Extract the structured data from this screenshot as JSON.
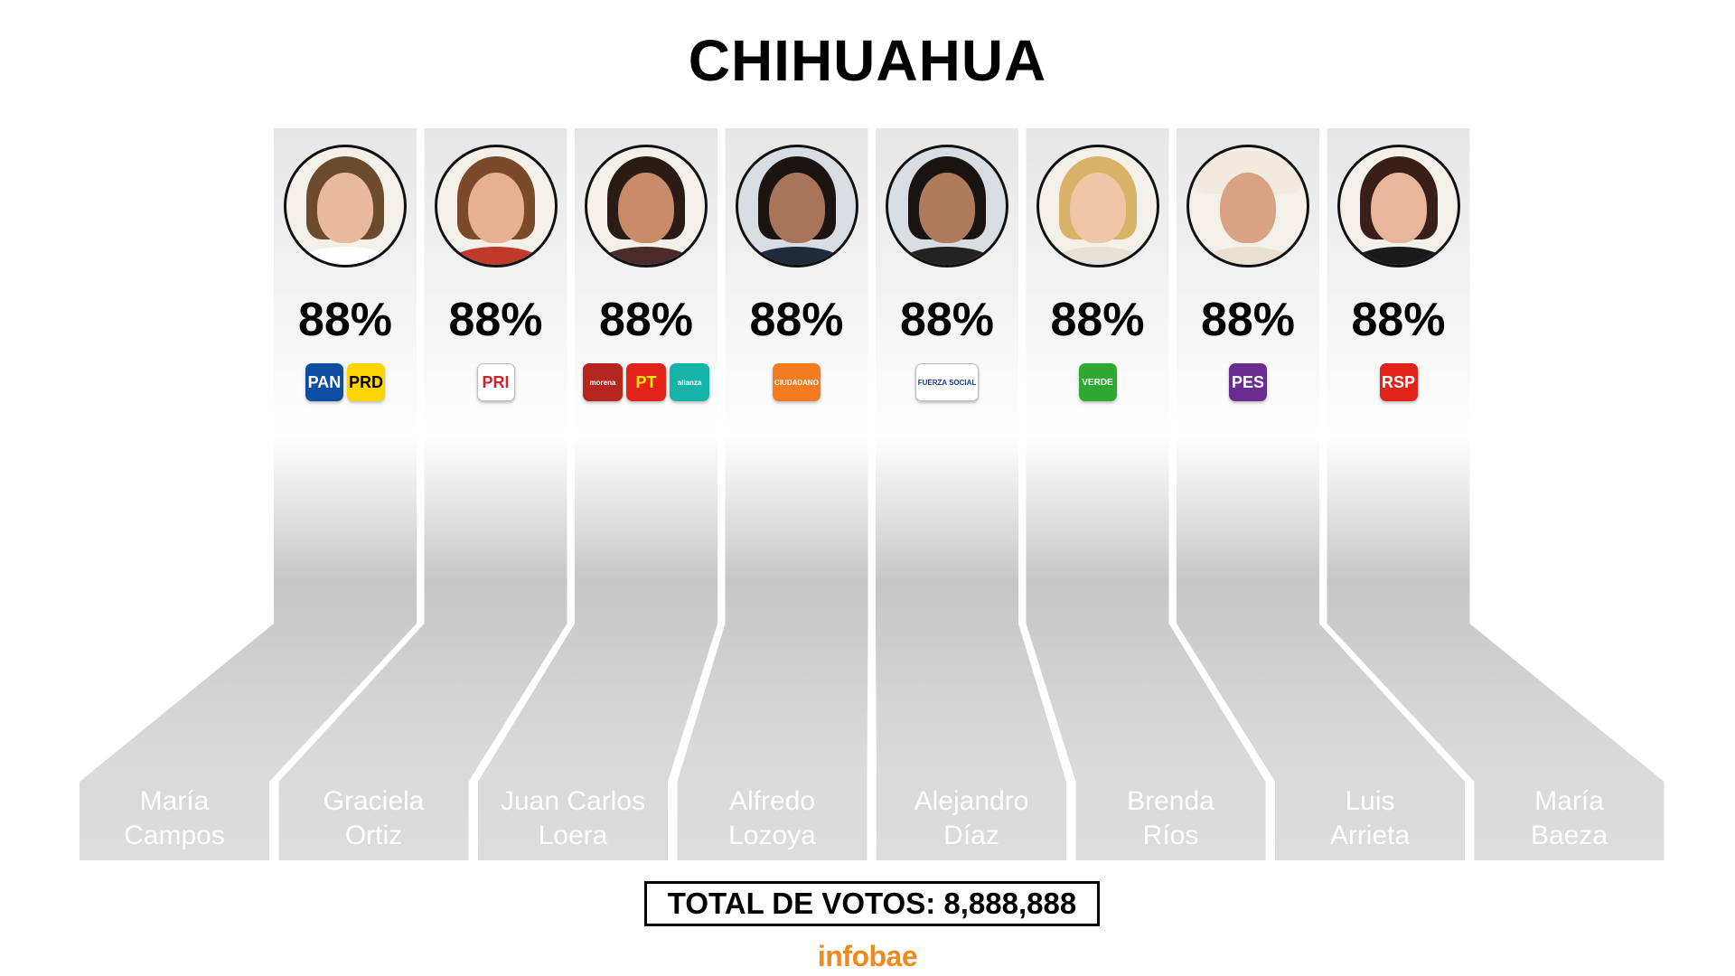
{
  "title": "CHIHUAHUA",
  "candidates": [
    {
      "name_line1": "María",
      "name_line2": "Campos",
      "pct": "88%",
      "parties": [
        {
          "label": "PAN",
          "bg": "#0d4ea3",
          "fg": "#ffffff"
        },
        {
          "label": "PRD",
          "bg": "#ffd400",
          "fg": "#000000"
        }
      ]
    },
    {
      "name_line1": "Graciela",
      "name_line2": "Ortiz",
      "pct": "88%",
      "parties": [
        {
          "label": "PRI",
          "bg": "#ffffff",
          "fg": "#d1232a"
        }
      ]
    },
    {
      "name_line1": "Juan Carlos",
      "name_line2": "Loera",
      "pct": "88%",
      "parties": [
        {
          "label": "morena",
          "bg": "#b5261e",
          "fg": "#ffffff"
        },
        {
          "label": "PT",
          "bg": "#e2231a",
          "fg": "#ffe600"
        },
        {
          "label": "alianza",
          "bg": "#17b3a8",
          "fg": "#ffffff"
        }
      ]
    },
    {
      "name_line1": "Alfredo",
      "name_line2": "Lozoya",
      "pct": "88%",
      "parties": [
        {
          "label": "CIUDADANO",
          "bg": "#f47b20",
          "fg": "#ffffff"
        }
      ]
    },
    {
      "name_line1": "Alejandro",
      "name_line2": "Díaz",
      "pct": "88%",
      "parties": [
        {
          "label": "FUERZA SOCIAL",
          "bg": "#ffffff",
          "fg": "#1f3a8a"
        }
      ]
    },
    {
      "name_line1": "Brenda",
      "name_line2": "Ríos",
      "pct": "88%",
      "parties": [
        {
          "label": "VERDE",
          "bg": "#2fa832",
          "fg": "#ffffff"
        }
      ]
    },
    {
      "name_line1": "Luis",
      "name_line2": "Arrieta",
      "pct": "88%",
      "parties": [
        {
          "label": "PES",
          "bg": "#6a2c91",
          "fg": "#ffffff"
        }
      ]
    },
    {
      "name_line1": "María",
      "name_line2": "Baeza",
      "pct": "88%",
      "parties": [
        {
          "label": "RSP",
          "bg": "#e2231a",
          "fg": "#ffffff"
        }
      ]
    }
  ],
  "total_label": "TOTAL DE VOTOS: 8,888,888",
  "brand": "infobae",
  "colors": {
    "brand": "#f08a1c",
    "column_top": "#e4e4e4",
    "column_bottom": "#cfcfcf"
  }
}
